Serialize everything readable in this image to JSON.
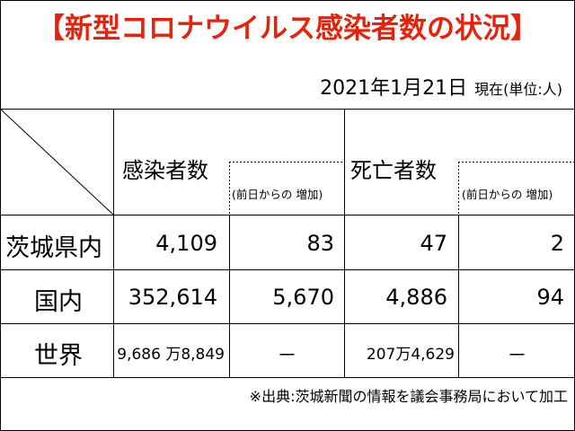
{
  "title": "【新型コロナウイルス感染者数の状況】",
  "date": "2021年1月21日",
  "as_of": "現在(単位:人)",
  "columns": {
    "infected": "感染者数",
    "infected_delta": "(前日からの 増加)",
    "deaths": "死亡者数",
    "deaths_delta": "(前日からの 増加)"
  },
  "rows": [
    {
      "label": "茨城県内",
      "infected": "4,109",
      "infected_delta": "83",
      "deaths": "47",
      "deaths_delta": "2"
    },
    {
      "label": "国内",
      "infected": "352,614",
      "infected_delta": "5,670",
      "deaths": "4,886",
      "deaths_delta": "94"
    },
    {
      "label": "世界",
      "infected": "9,686 万8,849",
      "infected_delta": "－",
      "deaths": "207万4,629",
      "deaths_delta": "－"
    }
  ],
  "source": "※出典:茨城新聞の情報を議会事務局において加工"
}
